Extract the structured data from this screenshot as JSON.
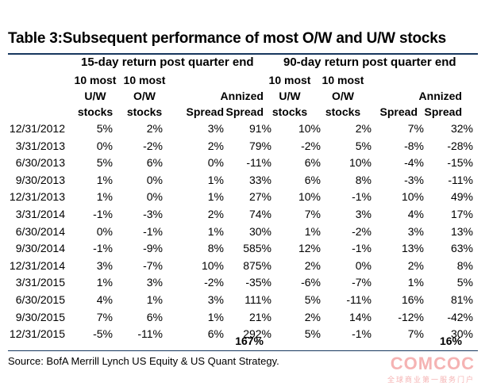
{
  "title": "Table 3:Subsequent performance of most O/W and U/W stocks",
  "groups": {
    "g15": "15-day return post quarter end",
    "g90": "90-day return post quarter end"
  },
  "headers": {
    "uw_line1": "10 most",
    "uw_line2": "U/W",
    "uw_line3": "stocks",
    "ow_line1": "10 most",
    "ow_line2": "O/W",
    "ow_line3": "stocks",
    "spread": "Spread",
    "annized_line1": "Annized",
    "annized_line2": "Spread"
  },
  "rows": [
    {
      "date": "12/31/2012",
      "uw15": "5%",
      "ow15": "2%",
      "sp15": "3%",
      "an15": "91%",
      "uw90": "10%",
      "ow90": "2%",
      "sp90": "7%",
      "an90": "32%"
    },
    {
      "date": "3/31/2013",
      "uw15": "0%",
      "ow15": "-2%",
      "sp15": "2%",
      "an15": "79%",
      "uw90": "-2%",
      "ow90": "5%",
      "sp90": "-8%",
      "an90": "-28%"
    },
    {
      "date": "6/30/2013",
      "uw15": "5%",
      "ow15": "6%",
      "sp15": "0%",
      "an15": "-11%",
      "uw90": "6%",
      "ow90": "10%",
      "sp90": "-4%",
      "an90": "-15%"
    },
    {
      "date": "9/30/2013",
      "uw15": "1%",
      "ow15": "0%",
      "sp15": "1%",
      "an15": "33%",
      "uw90": "6%",
      "ow90": "8%",
      "sp90": "-3%",
      "an90": "-11%"
    },
    {
      "date": "12/31/2013",
      "uw15": "1%",
      "ow15": "0%",
      "sp15": "1%",
      "an15": "27%",
      "uw90": "10%",
      "ow90": "-1%",
      "sp90": "10%",
      "an90": "49%"
    },
    {
      "date": "3/31/2014",
      "uw15": "-1%",
      "ow15": "-3%",
      "sp15": "2%",
      "an15": "74%",
      "uw90": "7%",
      "ow90": "3%",
      "sp90": "4%",
      "an90": "17%"
    },
    {
      "date": "6/30/2014",
      "uw15": "0%",
      "ow15": "-1%",
      "sp15": "1%",
      "an15": "30%",
      "uw90": "1%",
      "ow90": "-2%",
      "sp90": "3%",
      "an90": "13%"
    },
    {
      "date": "9/30/2014",
      "uw15": "-1%",
      "ow15": "-9%",
      "sp15": "8%",
      "an15": "585%",
      "uw90": "12%",
      "ow90": "-1%",
      "sp90": "13%",
      "an90": "63%"
    },
    {
      "date": "12/31/2014",
      "uw15": "3%",
      "ow15": "-7%",
      "sp15": "10%",
      "an15": "875%",
      "uw90": "2%",
      "ow90": "0%",
      "sp90": "2%",
      "an90": "8%"
    },
    {
      "date": "3/31/2015",
      "uw15": "1%",
      "ow15": "3%",
      "sp15": "-2%",
      "an15": "-35%",
      "uw90": "-6%",
      "ow90": "-7%",
      "sp90": "1%",
      "an90": "5%"
    },
    {
      "date": "6/30/2015",
      "uw15": "4%",
      "ow15": "1%",
      "sp15": "3%",
      "an15": "111%",
      "uw90": "5%",
      "ow90": "-11%",
      "sp90": "16%",
      "an90": "81%"
    },
    {
      "date": "9/30/2015",
      "uw15": "7%",
      "ow15": "6%",
      "sp15": "1%",
      "an15": "21%",
      "uw90": "2%",
      "ow90": "14%",
      "sp90": "-12%",
      "an90": "-42%"
    },
    {
      "date": "12/31/2015",
      "uw15": "-5%",
      "ow15": "-11%",
      "sp15": "6%",
      "an15": "292%",
      "uw90": "5%",
      "ow90": "-1%",
      "sp90": "7%",
      "an90": "30%"
    }
  ],
  "totals": {
    "an15": "167%",
    "an90": "16%"
  },
  "source": "Source: BofA Merrill Lynch US Equity & US Quant Strategy.",
  "watermark": {
    "main": "COMCOC",
    "sub": "全球商业第一服务门户"
  },
  "colors": {
    "rule": "#17375e",
    "watermark": "#f4a6a6"
  }
}
